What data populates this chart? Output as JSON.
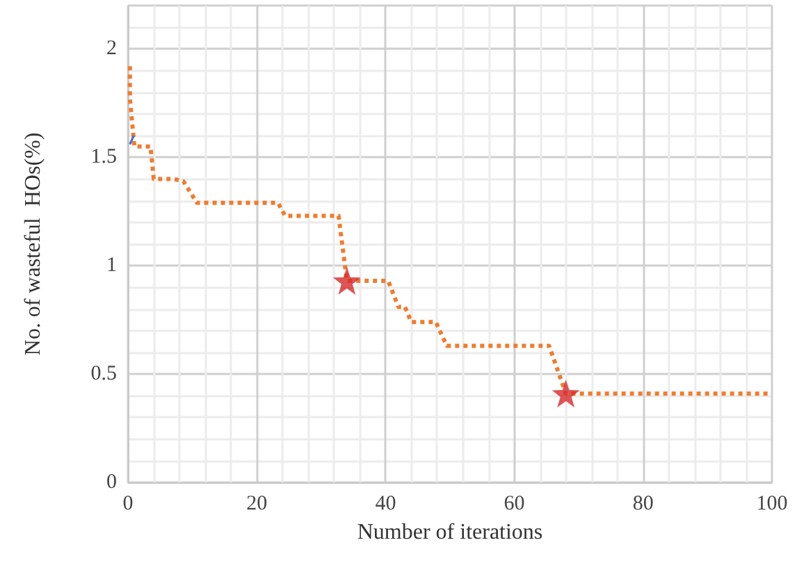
{
  "chart_data": {
    "type": "line",
    "xlabel": "Number of iterations",
    "ylabel": "No. of wasteful  HOs(%)",
    "xlim": [
      0,
      100
    ],
    "xticks": [
      0,
      20,
      40,
      60,
      80,
      100
    ],
    "ylim": [
      0,
      2.2
    ],
    "yticks": [
      0,
      0.5,
      1,
      1.5,
      2
    ],
    "grid": true,
    "series": [
      {
        "color": "#ed7d31",
        "line_style": "dotted",
        "marker": "none",
        "x": [
          0.3,
          0.3,
          1,
          3.5,
          4,
          7.1,
          8.6,
          10.7,
          23.3,
          24.4,
          32.7,
          34,
          40.4,
          42,
          43,
          44,
          47.8,
          49.5,
          65.4,
          68,
          99.6
        ],
        "values": [
          1.92,
          1.77,
          1.55,
          1.55,
          1.4,
          1.4,
          1.39,
          1.29,
          1.29,
          1.23,
          1.23,
          0.93,
          0.93,
          0.81,
          0.81,
          0.74,
          0.74,
          0.63,
          0.63,
          0.41,
          0.41
        ]
      },
      {
        "color": "#4472c4",
        "line_style": "solid",
        "marker": "none",
        "x": [
          0.3,
          0.9
        ],
        "values": [
          1.56,
          1.6
        ]
      },
      {
        "type": "scatter",
        "color": "#d42a2a",
        "marker": "star",
        "x": [
          34,
          68
        ],
        "values": [
          0.93,
          0.41
        ]
      }
    ]
  }
}
